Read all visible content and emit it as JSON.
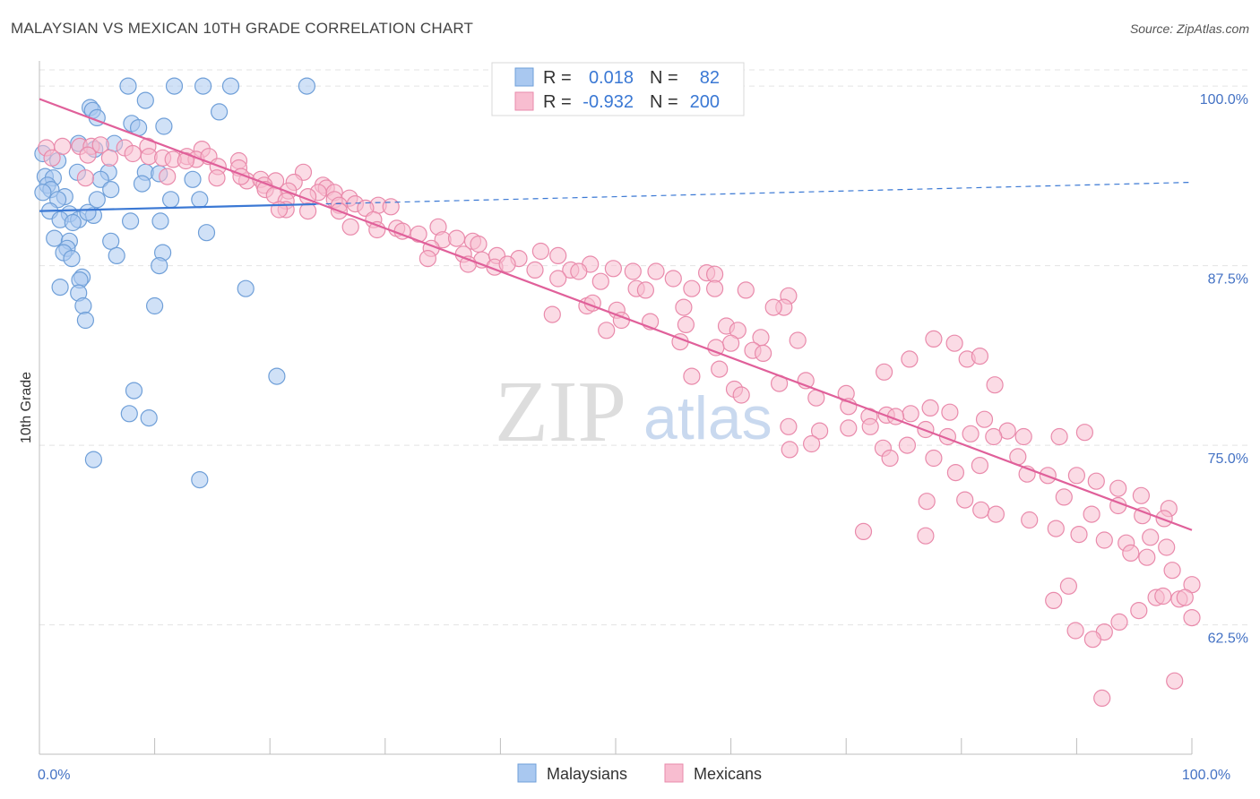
{
  "title": "MALAYSIAN VS MEXICAN 10TH GRADE CORRELATION CHART",
  "source": "Source: ZipAtlas.com",
  "watermark": {
    "zip": "ZIP",
    "atlas": "atlas"
  },
  "chart_data": {
    "type": "scatter",
    "xlabel": "",
    "ylabel": "10th Grade",
    "xlim": [
      0,
      100
    ],
    "ylim": [
      53.5,
      101.5
    ],
    "x_ticks": [
      {
        "value": 0,
        "label": "0.0%"
      },
      {
        "value": 100,
        "label": "100.0%"
      }
    ],
    "y_ticks": [
      {
        "value": 100,
        "label": "100.0%"
      },
      {
        "value": 87.5,
        "label": "87.5%"
      },
      {
        "value": 75,
        "label": "75.0%"
      },
      {
        "value": 62.5,
        "label": "62.5%"
      }
    ],
    "legend": [
      {
        "name": "Malaysians",
        "color": "#a9c8f0",
        "stroke": "#6f9fd8"
      },
      {
        "name": "Mexicans",
        "color": "#f8bdd0",
        "stroke": "#e98aab"
      }
    ],
    "stats": [
      {
        "r_label": "R =",
        "r": "0.018",
        "n_label": "N =",
        "n": "82"
      },
      {
        "r_label": "R =",
        "r": "-0.932",
        "n_label": "N =",
        "n": "200"
      }
    ],
    "series": [
      {
        "name": "Malaysians",
        "color": "#a9c8f0",
        "stroke": "#6f9fd8",
        "trend": {
          "x0": 0,
          "y0": 91.3,
          "x1": 100,
          "y1": 93.3,
          "solid_until": 24,
          "color": "#3a78d4"
        },
        "points": [
          [
            7.7,
            100
          ],
          [
            11.7,
            100
          ],
          [
            14.2,
            100
          ],
          [
            16.6,
            100
          ],
          [
            23.2,
            100
          ],
          [
            9.2,
            99
          ],
          [
            4.4,
            98.5
          ],
          [
            4.6,
            98.3
          ],
          [
            15.6,
            98.2
          ],
          [
            5.0,
            97.8
          ],
          [
            8.0,
            97.4
          ],
          [
            8.6,
            97.1
          ],
          [
            10.8,
            97.2
          ],
          [
            3.4,
            96.0
          ],
          [
            6.5,
            96.0
          ],
          [
            4.8,
            95.6
          ],
          [
            1.6,
            94.8
          ],
          [
            0.3,
            95.3
          ],
          [
            6.0,
            94.0
          ],
          [
            9.2,
            94.0
          ],
          [
            10.4,
            93.9
          ],
          [
            3.3,
            94.0
          ],
          [
            0.5,
            93.7
          ],
          [
            1.2,
            93.6
          ],
          [
            5.3,
            93.5
          ],
          [
            13.3,
            93.5
          ],
          [
            0.7,
            93.1
          ],
          [
            1.0,
            92.8
          ],
          [
            0.3,
            92.6
          ],
          [
            2.2,
            92.3
          ],
          [
            6.2,
            92.8
          ],
          [
            8.9,
            93.2
          ],
          [
            1.6,
            92.1
          ],
          [
            5.0,
            92.1
          ],
          [
            11.4,
            92.1
          ],
          [
            13.9,
            92.1
          ],
          [
            0.9,
            91.3
          ],
          [
            2.6,
            91.1
          ],
          [
            3.4,
            90.7
          ],
          [
            4.7,
            91.0
          ],
          [
            4.2,
            91.2
          ],
          [
            1.8,
            90.7
          ],
          [
            2.9,
            90.5
          ],
          [
            7.9,
            90.6
          ],
          [
            10.5,
            90.6
          ],
          [
            14.5,
            89.8
          ],
          [
            1.3,
            89.4
          ],
          [
            2.6,
            89.2
          ],
          [
            6.2,
            89.2
          ],
          [
            2.4,
            88.7
          ],
          [
            2.1,
            88.4
          ],
          [
            6.7,
            88.2
          ],
          [
            10.7,
            88.4
          ],
          [
            2.8,
            88.0
          ],
          [
            10.4,
            87.5
          ],
          [
            3.7,
            86.7
          ],
          [
            3.5,
            86.5
          ],
          [
            1.8,
            86.0
          ],
          [
            3.4,
            85.6
          ],
          [
            17.9,
            85.9
          ],
          [
            3.8,
            84.7
          ],
          [
            10.0,
            84.7
          ],
          [
            4.0,
            83.7
          ],
          [
            20.6,
            79.8
          ],
          [
            8.2,
            78.8
          ],
          [
            7.8,
            77.2
          ],
          [
            9.5,
            76.9
          ],
          [
            4.7,
            74.0
          ],
          [
            13.9,
            72.6
          ]
        ]
      },
      {
        "name": "Mexicans",
        "color": "#f8bdd0",
        "stroke": "#e98aab",
        "trend": {
          "x0": 0,
          "y0": 99.1,
          "x1": 100,
          "y1": 69.1,
          "color": "#e0609a"
        },
        "points": [
          [
            0.6,
            95.7
          ],
          [
            2.0,
            95.8
          ],
          [
            3.5,
            95.8
          ],
          [
            4.5,
            95.8
          ],
          [
            5.3,
            95.9
          ],
          [
            7.4,
            95.7
          ],
          [
            9.4,
            95.8
          ],
          [
            14.1,
            95.6
          ],
          [
            1.1,
            95.0
          ],
          [
            4.2,
            95.2
          ],
          [
            6.1,
            95.0
          ],
          [
            8.1,
            95.3
          ],
          [
            9.5,
            95.1
          ],
          [
            10.7,
            95.0
          ],
          [
            12.8,
            95.1
          ],
          [
            13.6,
            94.9
          ],
          [
            11.6,
            94.9
          ],
          [
            14.7,
            95.1
          ],
          [
            17.3,
            94.8
          ],
          [
            12.7,
            94.8
          ],
          [
            15.5,
            94.4
          ],
          [
            17.3,
            94.3
          ],
          [
            22.9,
            94.0
          ],
          [
            4.0,
            93.6
          ],
          [
            11.1,
            93.7
          ],
          [
            15.4,
            93.6
          ],
          [
            18.0,
            93.4
          ],
          [
            19.2,
            93.5
          ],
          [
            20.5,
            93.4
          ],
          [
            22.1,
            93.3
          ],
          [
            24.6,
            93.1
          ],
          [
            24.9,
            92.9
          ],
          [
            25.6,
            92.6
          ],
          [
            26.9,
            92.2
          ],
          [
            17.5,
            93.7
          ],
          [
            19.5,
            93.1
          ],
          [
            21.6,
            92.7
          ],
          [
            24.2,
            92.6
          ],
          [
            23.3,
            92.3
          ],
          [
            19.6,
            92.8
          ],
          [
            20.4,
            92.4
          ],
          [
            21.4,
            92.0
          ],
          [
            25.6,
            92.1
          ],
          [
            26.0,
            91.7
          ],
          [
            27.4,
            91.8
          ],
          [
            29.4,
            91.7
          ],
          [
            26.0,
            91.3
          ],
          [
            28.3,
            91.5
          ],
          [
            30.5,
            91.6
          ],
          [
            21.4,
            91.4
          ],
          [
            23.3,
            91.3
          ],
          [
            20.8,
            91.4
          ],
          [
            29.0,
            90.7
          ],
          [
            27.0,
            90.2
          ],
          [
            31.0,
            90.1
          ],
          [
            34.6,
            90.2
          ],
          [
            29.3,
            90.0
          ],
          [
            31.5,
            89.9
          ],
          [
            32.9,
            89.7
          ],
          [
            35.0,
            89.3
          ],
          [
            37.6,
            89.2
          ],
          [
            36.2,
            89.4
          ],
          [
            38.1,
            89.0
          ],
          [
            34.0,
            88.7
          ],
          [
            33.7,
            88.0
          ],
          [
            36.8,
            88.3
          ],
          [
            38.4,
            87.9
          ],
          [
            39.7,
            88.2
          ],
          [
            41.6,
            88.0
          ],
          [
            43.5,
            88.5
          ],
          [
            45.0,
            88.2
          ],
          [
            37.2,
            87.6
          ],
          [
            39.5,
            87.4
          ],
          [
            40.6,
            87.6
          ],
          [
            43.0,
            87.2
          ],
          [
            46.1,
            87.2
          ],
          [
            47.8,
            87.6
          ],
          [
            49.8,
            87.3
          ],
          [
            51.5,
            87.1
          ],
          [
            53.5,
            87.1
          ],
          [
            57.9,
            87.0
          ],
          [
            58.6,
            86.9
          ],
          [
            46.8,
            87.1
          ],
          [
            45.0,
            86.6
          ],
          [
            48.7,
            86.4
          ],
          [
            55.0,
            86.6
          ],
          [
            51.8,
            85.9
          ],
          [
            56.6,
            85.9
          ],
          [
            58.6,
            85.9
          ],
          [
            52.6,
            85.8
          ],
          [
            61.3,
            85.8
          ],
          [
            65.0,
            85.4
          ],
          [
            64.6,
            84.6
          ],
          [
            63.7,
            84.6
          ],
          [
            55.9,
            84.6
          ],
          [
            50.1,
            84.4
          ],
          [
            44.5,
            84.1
          ],
          [
            47.5,
            84.7
          ],
          [
            48.0,
            84.9
          ],
          [
            50.5,
            83.7
          ],
          [
            53.0,
            83.6
          ],
          [
            49.2,
            83.0
          ],
          [
            59.6,
            83.3
          ],
          [
            56.1,
            83.4
          ],
          [
            60.6,
            83.0
          ],
          [
            62.6,
            82.5
          ],
          [
            60.0,
            82.1
          ],
          [
            65.8,
            82.3
          ],
          [
            55.6,
            82.2
          ],
          [
            58.7,
            81.8
          ],
          [
            61.9,
            81.6
          ],
          [
            62.8,
            81.4
          ],
          [
            66.5,
            79.5
          ],
          [
            73.3,
            80.1
          ],
          [
            75.5,
            81.0
          ],
          [
            77.6,
            82.4
          ],
          [
            79.4,
            82.1
          ],
          [
            80.5,
            81.0
          ],
          [
            81.6,
            81.2
          ],
          [
            82.9,
            79.2
          ],
          [
            64.2,
            79.3
          ],
          [
            60.3,
            78.9
          ],
          [
            56.6,
            79.8
          ],
          [
            59.0,
            80.3
          ],
          [
            60.9,
            78.5
          ],
          [
            67.4,
            78.3
          ],
          [
            70.0,
            78.6
          ],
          [
            70.2,
            77.7
          ],
          [
            72.0,
            77.0
          ],
          [
            73.5,
            77.1
          ],
          [
            75.6,
            77.2
          ],
          [
            77.3,
            77.6
          ],
          [
            79.0,
            77.3
          ],
          [
            82.0,
            76.8
          ],
          [
            84.0,
            76.0
          ],
          [
            65.0,
            76.3
          ],
          [
            67.7,
            76.0
          ],
          [
            70.2,
            76.2
          ],
          [
            72.1,
            76.3
          ],
          [
            74.3,
            77.0
          ],
          [
            76.9,
            76.1
          ],
          [
            78.8,
            75.6
          ],
          [
            80.8,
            75.8
          ],
          [
            82.8,
            75.6
          ],
          [
            85.4,
            75.6
          ],
          [
            88.5,
            75.6
          ],
          [
            90.7,
            75.9
          ],
          [
            73.2,
            74.8
          ],
          [
            65.1,
            74.7
          ],
          [
            67.0,
            75.1
          ],
          [
            75.3,
            75.0
          ],
          [
            73.8,
            74.1
          ],
          [
            77.6,
            74.1
          ],
          [
            84.9,
            74.2
          ],
          [
            79.5,
            73.1
          ],
          [
            81.6,
            73.6
          ],
          [
            85.7,
            73.0
          ],
          [
            87.5,
            72.9
          ],
          [
            90.0,
            72.9
          ],
          [
            91.7,
            72.5
          ],
          [
            93.6,
            72.0
          ],
          [
            95.6,
            71.5
          ],
          [
            98.0,
            70.6
          ],
          [
            88.9,
            71.4
          ],
          [
            91.3,
            70.2
          ],
          [
            93.6,
            70.8
          ],
          [
            95.7,
            70.1
          ],
          [
            97.6,
            69.9
          ],
          [
            77.0,
            71.1
          ],
          [
            80.3,
            71.2
          ],
          [
            81.7,
            70.5
          ],
          [
            83.0,
            70.2
          ],
          [
            85.9,
            69.8
          ],
          [
            88.2,
            69.2
          ],
          [
            90.2,
            68.8
          ],
          [
            92.4,
            68.4
          ],
          [
            94.3,
            68.2
          ],
          [
            96.4,
            68.6
          ],
          [
            97.8,
            67.9
          ],
          [
            71.5,
            69.0
          ],
          [
            76.9,
            68.7
          ],
          [
            94.7,
            67.5
          ],
          [
            96.1,
            67.2
          ],
          [
            98.3,
            66.3
          ],
          [
            100.0,
            65.3
          ],
          [
            98.9,
            64.3
          ],
          [
            96.9,
            64.4
          ],
          [
            95.4,
            63.5
          ],
          [
            93.7,
            62.7
          ],
          [
            92.4,
            62.0
          ],
          [
            91.4,
            61.5
          ],
          [
            89.9,
            62.1
          ],
          [
            88.0,
            64.2
          ],
          [
            89.3,
            65.2
          ],
          [
            97.5,
            64.5
          ],
          [
            99.4,
            64.4
          ],
          [
            98.5,
            58.6
          ],
          [
            92.2,
            57.4
          ],
          [
            100.0,
            63.0
          ]
        ]
      }
    ]
  }
}
